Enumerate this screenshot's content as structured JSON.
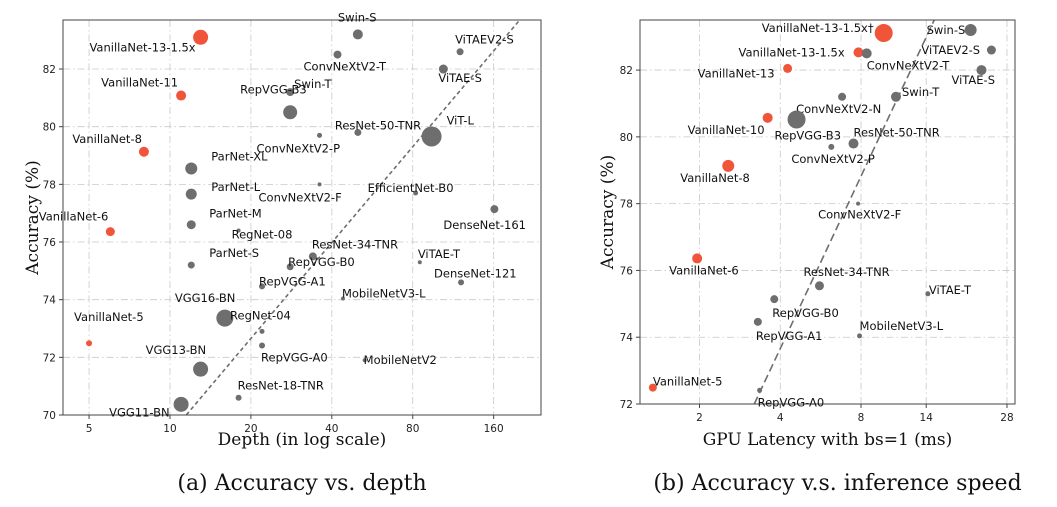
{
  "chart_data": [
    {
      "type": "scatter",
      "caption": "(a) Accuracy vs. depth",
      "xlabel": "Depth (in log scale)",
      "ylabel": "Accuracy (%)",
      "x_scale": "log",
      "xlim": [
        4,
        240
      ],
      "ylim": [
        70,
        83.7
      ],
      "xticks": [
        5,
        10,
        20,
        40,
        80,
        160
      ],
      "xtick_labels": [
        "5",
        "10",
        "20",
        "40",
        "80",
        "160"
      ],
      "yticks": [
        70,
        72,
        74,
        76,
        78,
        80,
        82
      ],
      "ytick_labels": [
        "70",
        "72",
        "74",
        "76",
        "78",
        "80",
        "82"
      ],
      "grid": true,
      "colors": {
        "vanillanet": "#f0553a",
        "other": "#6e6e6e"
      },
      "trend_line": {
        "x": [
          11.5,
          200
        ],
        "y": [
          70,
          83.7
        ]
      },
      "points": [
        {
          "label": "VanillaNet-13-1.5x",
          "x": 13,
          "y": 83.1,
          "size": 14,
          "group": "vanillanet"
        },
        {
          "label": "VanillaNet-11",
          "x": 11,
          "y": 81.08,
          "size": 9,
          "group": "vanillanet"
        },
        {
          "label": "VanillaNet-8",
          "x": 8,
          "y": 79.13,
          "size": 9,
          "group": "vanillanet"
        },
        {
          "label": "VanillaNet-6",
          "x": 6,
          "y": 76.36,
          "size": 8,
          "group": "vanillanet"
        },
        {
          "label": "VanillaNet-5",
          "x": 5,
          "y": 72.49,
          "size": 5,
          "group": "vanillanet"
        },
        {
          "label": "Swin-S",
          "x": 50,
          "y": 83.2,
          "size": 9,
          "group": "other"
        },
        {
          "label": "ViTAEV2-S",
          "x": 120,
          "y": 82.6,
          "size": 6,
          "group": "other"
        },
        {
          "label": "ConvNeXtV2-T",
          "x": 42,
          "y": 82.5,
          "size": 7,
          "group": "other"
        },
        {
          "label": "ViTAE-S",
          "x": 104,
          "y": 82.0,
          "size": 8,
          "group": "other"
        },
        {
          "label": "Swin-T",
          "x": 28,
          "y": 81.2,
          "size": 7,
          "group": "other"
        },
        {
          "label": "RepVGG-B3",
          "x": 28,
          "y": 80.5,
          "size": 13,
          "group": "other"
        },
        {
          "label": "ResNet-50-TNR",
          "x": 50,
          "y": 79.8,
          "size": 6,
          "group": "other"
        },
        {
          "label": "ConvNeXtV2-P",
          "x": 36,
          "y": 79.7,
          "size": 4,
          "group": "other"
        },
        {
          "label": "ViT-L",
          "x": 94,
          "y": 79.66,
          "size": 19,
          "group": "other"
        },
        {
          "label": "ParNet-XL",
          "x": 12,
          "y": 78.55,
          "size": 11,
          "group": "other"
        },
        {
          "label": "ParNet-L",
          "x": 12,
          "y": 77.66,
          "size": 10,
          "group": "other"
        },
        {
          "label": "ConvNeXtV2-F",
          "x": 36,
          "y": 78.0,
          "size": 3,
          "group": "other"
        },
        {
          "label": "EfficientNet-B0",
          "x": 82,
          "y": 77.7,
          "size": 4,
          "group": "other"
        },
        {
          "label": "ParNet-M",
          "x": 12,
          "y": 76.6,
          "size": 8,
          "group": "other"
        },
        {
          "label": "RegNet-08",
          "x": 18,
          "y": 76.4,
          "size": 3,
          "group": "other"
        },
        {
          "label": "DenseNet-161",
          "x": 161,
          "y": 77.14,
          "size": 7,
          "group": "other"
        },
        {
          "label": "ParNet-S",
          "x": 12,
          "y": 75.2,
          "size": 6,
          "group": "other"
        },
        {
          "label": "ResNet-34-TNR",
          "x": 34,
          "y": 75.5,
          "size": 7,
          "group": "other"
        },
        {
          "label": "RepVGG-B0",
          "x": 28,
          "y": 75.14,
          "size": 6,
          "group": "other"
        },
        {
          "label": "RepVGG-A1",
          "x": 22,
          "y": 74.46,
          "size": 5,
          "group": "other"
        },
        {
          "label": "ViTAE-T",
          "x": 85,
          "y": 75.3,
          "size": 3,
          "group": "other"
        },
        {
          "label": "DenseNet-121",
          "x": 121,
          "y": 74.6,
          "size": 5,
          "group": "other"
        },
        {
          "label": "MobileNetV3-L",
          "x": 44,
          "y": 74.04,
          "size": 3,
          "group": "other"
        },
        {
          "label": "VGG16-BN",
          "x": 16,
          "y": 73.36,
          "size": 16,
          "group": "other"
        },
        {
          "label": "RegNet-04",
          "x": 22,
          "y": 72.9,
          "size": 4,
          "group": "other"
        },
        {
          "label": "RepVGG-A0",
          "x": 22,
          "y": 72.41,
          "size": 5,
          "group": "other"
        },
        {
          "label": "MobileNetV2",
          "x": 53,
          "y": 71.9,
          "size": 3,
          "group": "other"
        },
        {
          "label": "VGG13-BN",
          "x": 13,
          "y": 71.59,
          "size": 14,
          "group": "other"
        },
        {
          "label": "ResNet-18-TNR",
          "x": 18,
          "y": 70.6,
          "size": 5,
          "group": "other"
        },
        {
          "label": "VGG11-BN",
          "x": 11,
          "y": 70.37,
          "size": 14,
          "group": "other"
        }
      ]
    },
    {
      "type": "scatter",
      "caption": "(b) Accuracy v.s. inference speed",
      "xlabel": "GPU Latency with bs=1 (ms)",
      "ylabel": "Accuracy (%)",
      "x_scale": "log",
      "xlim": [
        1.2,
        30
      ],
      "ylim": [
        72,
        83.5
      ],
      "xticks": [
        2,
        4,
        8,
        14,
        28
      ],
      "xtick_labels": [
        "2",
        "4",
        "8",
        "14",
        "28"
      ],
      "yticks": [
        72,
        74,
        76,
        78,
        80,
        82
      ],
      "ytick_labels": [
        "72",
        "74",
        "76",
        "78",
        "80",
        "82"
      ],
      "grid": true,
      "colors": {
        "vanillanet": "#f0553a",
        "other": "#6e6e6e"
      },
      "trend_line": {
        "x": [
          3.2,
          15
        ],
        "y": [
          72,
          83.5
        ]
      },
      "points": [
        {
          "label": "VanillaNet-13-1.5x†",
          "x": 9.72,
          "y": 83.11,
          "size": 17,
          "group": "vanillanet"
        },
        {
          "label": "VanillaNet-13-1.5x",
          "x": 7.83,
          "y": 82.53,
          "size": 9,
          "group": "vanillanet"
        },
        {
          "label": "VanillaNet-13",
          "x": 4.26,
          "y": 82.05,
          "size": 8,
          "group": "vanillanet"
        },
        {
          "label": "VanillaNet-10",
          "x": 3.59,
          "y": 80.57,
          "size": 9,
          "group": "vanillanet"
        },
        {
          "label": "VanillaNet-8",
          "x": 2.56,
          "y": 79.13,
          "size": 11,
          "group": "vanillanet"
        },
        {
          "label": "VanillaNet-6",
          "x": 1.96,
          "y": 76.36,
          "size": 9,
          "group": "vanillanet"
        },
        {
          "label": "VanillaNet-5",
          "x": 1.34,
          "y": 72.49,
          "size": 7,
          "group": "vanillanet"
        },
        {
          "label": "Swin-S",
          "x": 20.5,
          "y": 83.2,
          "size": 11,
          "group": "other"
        },
        {
          "label": "ConvNeXtV2-T",
          "x": 8.4,
          "y": 82.5,
          "size": 9,
          "group": "other"
        },
        {
          "label": "ViTAEV2-S",
          "x": 24.5,
          "y": 82.6,
          "size": 8,
          "group": "other"
        },
        {
          "label": "ViTAE-S",
          "x": 22.5,
          "y": 82.0,
          "size": 9,
          "group": "other"
        },
        {
          "label": "Swin-T",
          "x": 10.8,
          "y": 81.2,
          "size": 9,
          "group": "other"
        },
        {
          "label": "ConvNeXtV2-N",
          "x": 6.8,
          "y": 81.2,
          "size": 7,
          "group": "other"
        },
        {
          "label": "RepVGG-B3",
          "x": 4.6,
          "y": 80.52,
          "size": 17,
          "group": "other"
        },
        {
          "label": "ResNet-50-TNR",
          "x": 7.5,
          "y": 79.8,
          "size": 9,
          "group": "other"
        },
        {
          "label": "ConvNeXtV2-P",
          "x": 6.2,
          "y": 79.7,
          "size": 5,
          "group": "other"
        },
        {
          "label": "ConvNeXtV2-F",
          "x": 7.8,
          "y": 78.0,
          "size": 3,
          "group": "other"
        },
        {
          "label": "ResNet-34-TNR",
          "x": 5.6,
          "y": 75.54,
          "size": 8,
          "group": "other"
        },
        {
          "label": "ViTAE-T",
          "x": 14.2,
          "y": 75.3,
          "size": 4,
          "group": "other"
        },
        {
          "label": "RepVGG-B0",
          "x": 3.8,
          "y": 75.14,
          "size": 7,
          "group": "other"
        },
        {
          "label": "RepVGG-A1",
          "x": 3.3,
          "y": 74.46,
          "size": 7,
          "group": "other"
        },
        {
          "label": "MobileNetV3-L",
          "x": 7.9,
          "y": 74.04,
          "size": 4,
          "group": "other"
        },
        {
          "label": "RepVGG-A0",
          "x": 3.35,
          "y": 72.41,
          "size": 4,
          "group": "other"
        }
      ]
    }
  ]
}
